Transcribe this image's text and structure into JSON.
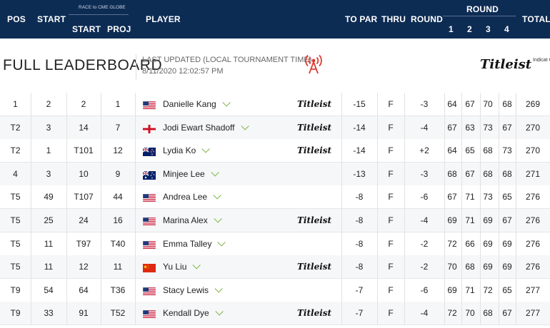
{
  "header": {
    "pos": "POS",
    "start": "START",
    "race_logo": "RACE to CME GLOBE",
    "race_start": "START",
    "race_proj": "PROJ",
    "player": "PLAYER",
    "to_par": "TO PAR",
    "thru": "THRU",
    "round": "ROUND",
    "round_group": "ROUND",
    "r1": "1",
    "r2": "2",
    "r3": "3",
    "r4": "4",
    "total": "TOTAL",
    "bg_color": "#0d2c54"
  },
  "title_bar": {
    "title": "FULL LEADERBOARD",
    "updated_label": "LAST UPDATED (LOCAL TOURNAMENT TIME)",
    "updated_time": "8/11/2020 12:02:57 PM",
    "live_icon": "broadcast-tower-icon",
    "sponsor": "Titleist",
    "sponsor_sub": "Indicat Golf Ba"
  },
  "rows": [
    {
      "pos": "1",
      "start": "2",
      "race_start": "2",
      "proj": "1",
      "flag": "usa",
      "player": "Danielle Kang",
      "titleist": true,
      "to_par": "-15",
      "thru": "F",
      "round": "-3",
      "r1": "64",
      "r2": "67",
      "r3": "70",
      "r4": "68",
      "total": "269"
    },
    {
      "pos": "T2",
      "start": "3",
      "race_start": "14",
      "proj": "7",
      "flag": "england",
      "player": "Jodi Ewart Shadoff",
      "titleist": true,
      "to_par": "-14",
      "thru": "F",
      "round": "-4",
      "r1": "67",
      "r2": "63",
      "r3": "73",
      "r4": "67",
      "total": "270"
    },
    {
      "pos": "T2",
      "start": "1",
      "race_start": "T101",
      "proj": "12",
      "flag": "nz",
      "player": "Lydia Ko",
      "titleist": true,
      "to_par": "-14",
      "thru": "F",
      "round": "+2",
      "r1": "64",
      "r2": "65",
      "r3": "68",
      "r4": "73",
      "total": "270"
    },
    {
      "pos": "4",
      "start": "3",
      "race_start": "10",
      "proj": "9",
      "flag": "australia",
      "player": "Minjee Lee",
      "titleist": false,
      "to_par": "-13",
      "thru": "F",
      "round": "-3",
      "r1": "68",
      "r2": "67",
      "r3": "68",
      "r4": "68",
      "total": "271"
    },
    {
      "pos": "T5",
      "start": "49",
      "race_start": "T107",
      "proj": "44",
      "flag": "usa",
      "player": "Andrea Lee",
      "titleist": false,
      "to_par": "-8",
      "thru": "F",
      "round": "-6",
      "r1": "67",
      "r2": "71",
      "r3": "73",
      "r4": "65",
      "total": "276"
    },
    {
      "pos": "T5",
      "start": "25",
      "race_start": "24",
      "proj": "16",
      "flag": "usa",
      "player": "Marina Alex",
      "titleist": true,
      "to_par": "-8",
      "thru": "F",
      "round": "-4",
      "r1": "69",
      "r2": "71",
      "r3": "69",
      "r4": "67",
      "total": "276"
    },
    {
      "pos": "T5",
      "start": "11",
      "race_start": "T97",
      "proj": "T40",
      "flag": "usa",
      "player": "Emma Talley",
      "titleist": false,
      "to_par": "-8",
      "thru": "F",
      "round": "-2",
      "r1": "72",
      "r2": "66",
      "r3": "69",
      "r4": "69",
      "total": "276"
    },
    {
      "pos": "T5",
      "start": "11",
      "race_start": "12",
      "proj": "11",
      "flag": "china",
      "player": "Yu Liu",
      "titleist": true,
      "to_par": "-8",
      "thru": "F",
      "round": "-2",
      "r1": "70",
      "r2": "68",
      "r3": "69",
      "r4": "69",
      "total": "276"
    },
    {
      "pos": "T9",
      "start": "54",
      "race_start": "64",
      "proj": "T36",
      "flag": "usa",
      "player": "Stacy Lewis",
      "titleist": false,
      "to_par": "-7",
      "thru": "F",
      "round": "-6",
      "r1": "69",
      "r2": "71",
      "r3": "72",
      "r4": "65",
      "total": "277"
    },
    {
      "pos": "T9",
      "start": "33",
      "race_start": "91",
      "proj": "T52",
      "flag": "usa",
      "player": "Kendall Dye",
      "titleist": true,
      "to_par": "-7",
      "thru": "F",
      "round": "-4",
      "r1": "72",
      "r2": "70",
      "r3": "68",
      "r4": "67",
      "total": "277"
    }
  ]
}
